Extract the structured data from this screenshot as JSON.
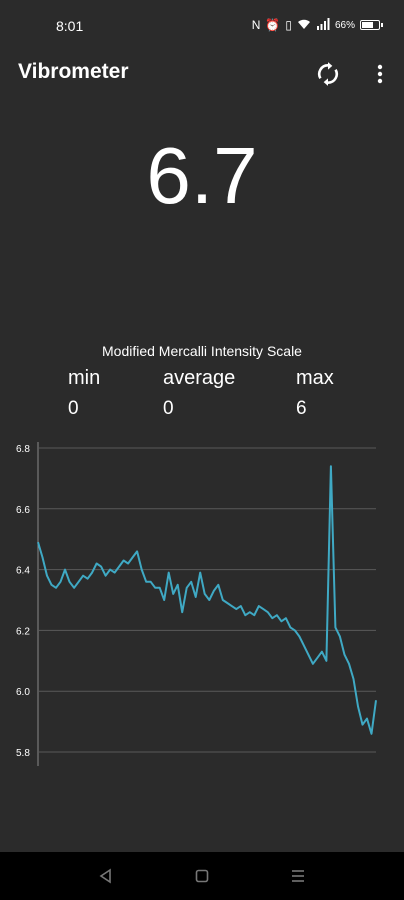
{
  "status_bar": {
    "time": "8:01",
    "battery_text": "66%"
  },
  "app_bar": {
    "title": "Vibrometer",
    "refresh_icon": "refresh-icon",
    "menu_icon": "more-vert-icon"
  },
  "reading": {
    "value": "6.7"
  },
  "scale": {
    "title": "Modified Mercalli Intensity Scale",
    "min_label": "min",
    "min_value": "0",
    "average_label": "average",
    "average_value": "0",
    "max_label": "max",
    "max_value": "6"
  },
  "chart_data": {
    "type": "line",
    "title": "",
    "xlabel": "",
    "ylabel": "",
    "ylim": [
      5.8,
      6.8
    ],
    "yticks": [
      "6.8",
      "6.6",
      "6.4",
      "6.2",
      "6.0",
      "5.8"
    ],
    "grid": true,
    "line_color": "#3fa9c4",
    "series": [
      {
        "values": [
          6.49,
          6.44,
          6.38,
          6.35,
          6.34,
          6.36,
          6.4,
          6.36,
          6.34,
          6.36,
          6.38,
          6.37,
          6.39,
          6.42,
          6.41,
          6.38,
          6.4,
          6.39,
          6.41,
          6.43,
          6.42,
          6.44,
          6.46,
          6.4,
          6.36,
          6.36,
          6.34,
          6.34,
          6.3,
          6.39,
          6.32,
          6.35,
          6.26,
          6.34,
          6.36,
          6.31,
          6.39,
          6.32,
          6.3,
          6.33,
          6.35,
          6.3,
          6.29,
          6.28,
          6.27,
          6.28,
          6.25,
          6.26,
          6.25,
          6.28,
          6.27,
          6.26,
          6.24,
          6.25,
          6.23,
          6.24,
          6.21,
          6.2,
          6.18,
          6.15,
          6.12,
          6.09,
          6.11,
          6.13,
          6.1,
          6.74,
          6.21,
          6.18,
          6.12,
          6.09,
          6.04,
          5.95,
          5.89,
          5.91,
          5.86,
          5.97
        ]
      }
    ]
  },
  "nav_bar": {
    "back_icon": "back-triangle-icon",
    "home_icon": "home-square-icon",
    "recents_icon": "recents-menu-icon"
  }
}
